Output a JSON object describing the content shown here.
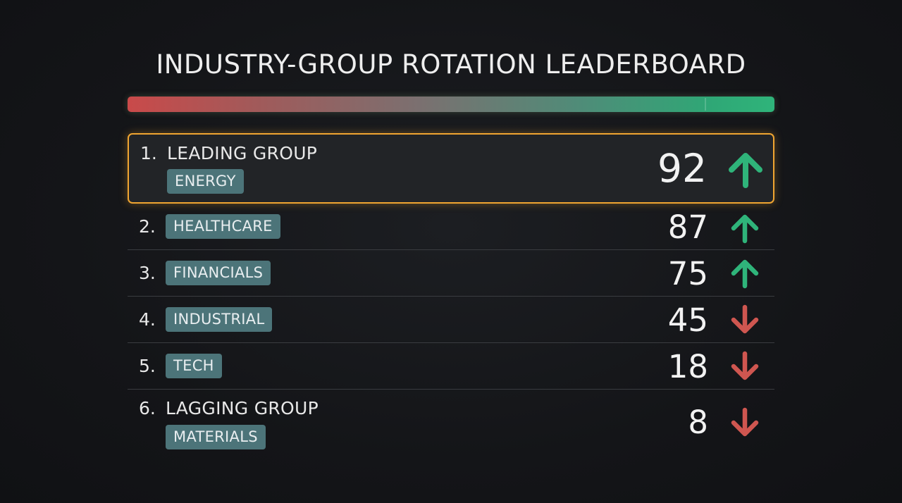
{
  "title": "INDUSTRY-GROUP ROTATION LEADERBOARD",
  "colors": {
    "up": "#2fb47a",
    "down": "#cf5650",
    "highlight_border": "#f0a531",
    "tag_bg": "#4c7479"
  },
  "rows": [
    {
      "rank": "1.",
      "group_label": "LEADING GROUP",
      "sector": "ENERGY",
      "score": "92",
      "direction": "up"
    },
    {
      "rank": "2.",
      "group_label": "",
      "sector": "HEALTHCARE",
      "score": "87",
      "direction": "up"
    },
    {
      "rank": "3.",
      "group_label": "",
      "sector": "FINANCIALS",
      "score": "75",
      "direction": "up"
    },
    {
      "rank": "4.",
      "group_label": "",
      "sector": "INDUSTRIAL",
      "score": "45",
      "direction": "down"
    },
    {
      "rank": "5.",
      "group_label": "",
      "sector": "TECH",
      "score": "18",
      "direction": "down"
    },
    {
      "rank": "6.",
      "group_label": "LAGGING GROUP",
      "sector": "MATERIALS",
      "score": "8",
      "direction": "down"
    }
  ]
}
